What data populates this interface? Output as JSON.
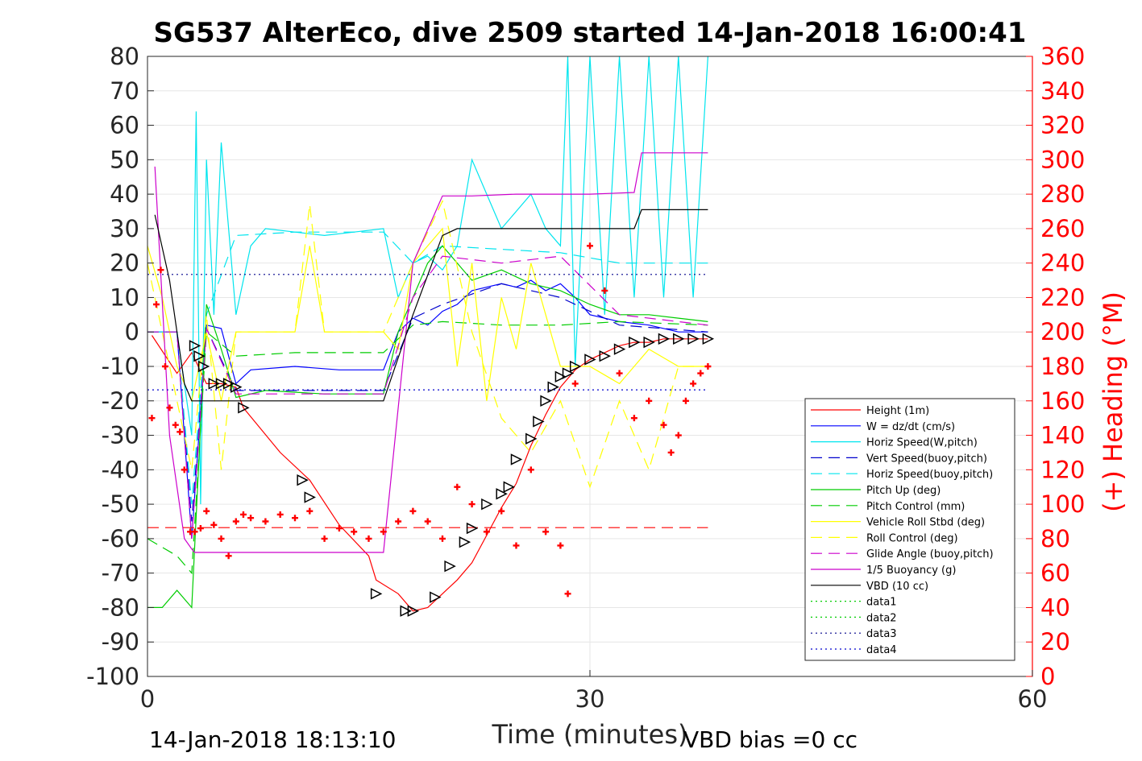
{
  "chart_data": {
    "type": "line",
    "title": "SG537 AlterEco, dive 2509 started 14-Jan-2018 16:00:41",
    "xlabel": "Time (minutes)",
    "ylabel_right": "(+) Heading (°M)",
    "xlim": [
      0,
      60
    ],
    "ylim_left": [
      -100,
      80
    ],
    "ylim_right": [
      0,
      360
    ],
    "xticks": [
      "0",
      "30",
      "60"
    ],
    "yticks_left": [
      "80",
      "70",
      "60",
      "50",
      "40",
      "30",
      "20",
      "10",
      "0",
      "-10",
      "-20",
      "-30",
      "-40",
      "-50",
      "-60",
      "-70",
      "-80",
      "-90",
      "-100"
    ],
    "yticks_right": [
      "360",
      "340",
      "320",
      "300",
      "280",
      "260",
      "240",
      "220",
      "200",
      "180",
      "160",
      "140",
      "120",
      "100",
      "80",
      "60",
      "40",
      "20",
      "0"
    ],
    "grid": true,
    "legend_position": "lower-right",
    "footer_left": "14-Jan-2018 18:13:10",
    "footer_right": "VBD bias =0 cc",
    "colors": {
      "axis": "#262626",
      "heading": "#ff0000",
      "grid": "#e6e6e6"
    },
    "series": [
      {
        "name": "Height (1m)",
        "color": "#ff0000",
        "style": "solid",
        "x": [
          0.3,
          2,
          3,
          4,
          5,
          6,
          6.5,
          9,
          11,
          13,
          15,
          15.5,
          17,
          18,
          19,
          20,
          21,
          22,
          23,
          24,
          25,
          26,
          27,
          28,
          29,
          30,
          31,
          32,
          33,
          34,
          35,
          36,
          37,
          38
        ],
        "y": [
          -1,
          -12,
          -6,
          -15,
          -15,
          -16,
          -22,
          -35,
          -43,
          -56,
          -65,
          -72,
          -76,
          -81,
          -80,
          -76,
          -72,
          -67,
          -59,
          -51,
          -44,
          -33,
          -24,
          -16,
          -11,
          -8,
          -6,
          -4,
          -3,
          -3,
          -2,
          -2,
          -2,
          -2
        ]
      },
      {
        "name": "W = dz/dt (cm/s)",
        "color": "#0000ff",
        "style": "solid",
        "x": [
          0,
          2,
          3,
          4,
          5,
          6,
          7,
          10,
          13,
          16,
          17,
          18,
          19,
          20,
          21,
          22,
          23,
          24,
          25,
          26,
          27,
          28,
          29,
          30,
          32,
          34,
          36,
          38
        ],
        "y": [
          0,
          0,
          -60,
          2,
          1,
          -15,
          -11,
          -10,
          -11,
          -11,
          0,
          4,
          2,
          6,
          8,
          12,
          13,
          14,
          13,
          15,
          12,
          14,
          10,
          5,
          3,
          2,
          0,
          0
        ]
      },
      {
        "name": "Horiz Speed(W,pitch)",
        "color": "#00e5ee",
        "style": "solid",
        "x": [
          0,
          1,
          2,
          3,
          3.3,
          3.6,
          4,
          4.5,
          5,
          6,
          7,
          8,
          10,
          12,
          14,
          16,
          17,
          18,
          19,
          20,
          21,
          22,
          23,
          24,
          25,
          26,
          27,
          28,
          28.5,
          29,
          30,
          31,
          32,
          33,
          34,
          35,
          36,
          37,
          38
        ],
        "y": [
          0,
          0,
          0,
          -30,
          64,
          -50,
          50,
          5,
          55,
          5,
          25,
          30,
          29,
          28,
          29,
          30,
          10,
          20,
          22,
          18,
          25,
          50,
          40,
          30,
          35,
          40,
          30,
          25,
          80,
          -10,
          80,
          5,
          80,
          10,
          80,
          10,
          80,
          10,
          80
        ]
      },
      {
        "name": "Vert Speed(buoy,pitch)",
        "color": "#0000cd",
        "style": "dashed",
        "x": [
          0,
          2,
          3,
          4,
          6,
          10,
          16,
          18,
          20,
          24,
          28,
          32,
          38
        ],
        "y": [
          0,
          0,
          -55,
          1,
          -17,
          -17,
          -17,
          4,
          8,
          14,
          10,
          2,
          0
        ]
      },
      {
        "name": "Horiz Speed(buoy,pitch)",
        "color": "#00e5ee",
        "style": "dashed",
        "x": [
          0,
          2,
          3,
          4,
          6,
          10,
          16,
          18,
          20,
          24,
          28,
          32,
          38
        ],
        "y": [
          0,
          0,
          -50,
          5,
          28,
          29,
          29,
          20,
          25,
          24,
          23,
          20,
          20
        ]
      },
      {
        "name": "Pitch Up (deg)",
        "color": "#00cc00",
        "style": "solid",
        "x": [
          0,
          1,
          2,
          3,
          4,
          5,
          6,
          8,
          12,
          16,
          17,
          18,
          19,
          20,
          22,
          24,
          26,
          28,
          30,
          32,
          34,
          36,
          38
        ],
        "y": [
          -80,
          -80,
          -75,
          -80,
          8,
          -5,
          -19,
          -17,
          -18,
          -18,
          0,
          10,
          20,
          25,
          15,
          18,
          14,
          12,
          8,
          5,
          5,
          4,
          3
        ]
      },
      {
        "name": "Pitch Control (mm)",
        "color": "#00cc00",
        "style": "dashed",
        "x": [
          0,
          2,
          3,
          4,
          6,
          10,
          16,
          18,
          20,
          24,
          28,
          32,
          38
        ],
        "y": [
          -60,
          -65,
          -70,
          0,
          -7,
          -6,
          -6,
          2,
          3,
          2,
          2,
          3,
          2
        ]
      },
      {
        "name": "Vehicle Roll Stbd (deg)",
        "color": "#ffff00",
        "style": "solid",
        "x": [
          0,
          1,
          2,
          3,
          4,
          5,
          6,
          8,
          10,
          11,
          12,
          14,
          16,
          17,
          18,
          20,
          21,
          22,
          23,
          24,
          25,
          26,
          27,
          28,
          30,
          32,
          34,
          36,
          38
        ],
        "y": [
          25,
          10,
          -10,
          -20,
          0,
          -20,
          0,
          0,
          0,
          25,
          0,
          0,
          0,
          -5,
          20,
          30,
          -10,
          20,
          -20,
          10,
          -5,
          20,
          5,
          -10,
          -10,
          -15,
          -5,
          -10,
          -10
        ]
      },
      {
        "name": "Roll Control (deg)",
        "color": "#ffff00",
        "style": "dashed",
        "x": [
          0,
          2,
          3,
          4,
          5,
          6,
          8,
          10,
          11,
          12,
          14,
          16,
          18,
          20,
          22,
          24,
          26,
          28,
          30,
          32,
          34,
          36,
          38
        ],
        "y": [
          20,
          -20,
          -40,
          5,
          -40,
          0,
          0,
          0,
          37,
          0,
          0,
          0,
          20,
          38,
          0,
          -25,
          -35,
          -20,
          -45,
          -20,
          -40,
          -10,
          -10
        ]
      },
      {
        "name": "Glide Angle (buoy,pitch)",
        "color": "#cc00cc",
        "style": "dashed",
        "x": [
          0,
          2,
          3,
          4,
          6,
          10,
          16,
          18,
          20,
          24,
          28,
          32,
          38
        ],
        "y": [
          0,
          0,
          -60,
          1,
          -18,
          -18,
          -18,
          10,
          22,
          20,
          22,
          5,
          2
        ]
      },
      {
        "name": "1/5 Buoyancy (g)",
        "color": "#cc00cc",
        "style": "solid",
        "x": [
          0.5,
          1.5,
          2.5,
          3,
          3.2,
          5,
          10,
          15,
          16,
          18,
          20,
          22,
          25,
          30,
          33,
          33.5,
          38
        ],
        "y": [
          48,
          -30,
          -60,
          -63,
          -64,
          -64,
          -64,
          -64,
          -64,
          20,
          39.5,
          39.5,
          40,
          40,
          40.5,
          52,
          52
        ]
      },
      {
        "name": "VBD (10 cc)",
        "color": "#000000",
        "style": "solid",
        "x": [
          0.5,
          1.5,
          2.5,
          3,
          5,
          10,
          15,
          16,
          18,
          20,
          21,
          25,
          30,
          33,
          33.5,
          38
        ],
        "y": [
          34,
          15,
          -15,
          -20,
          -20,
          -20,
          -20,
          -20,
          5,
          28,
          30,
          30,
          30,
          30,
          35.5,
          35.5
        ]
      },
      {
        "name": "data1",
        "color": "#00cc00",
        "style": "dotted",
        "x": [],
        "y": []
      },
      {
        "name": "data2",
        "color": "#00cc00",
        "style": "dotted",
        "x": [],
        "y": []
      },
      {
        "name": "data3",
        "color": "#00008b",
        "style": "dotted",
        "x": [
          0,
          38
        ],
        "y": [
          16.7,
          16.7
        ]
      },
      {
        "name": "data4",
        "color": "#0000cd",
        "style": "dotted",
        "x": [
          0,
          38
        ],
        "y": [
          -16.8,
          -16.8
        ]
      }
    ],
    "heading_ref": {
      "color": "#ff0000",
      "style": "dashed",
      "x": [
        0,
        38
      ],
      "y": [
        -56.8,
        -56.8
      ]
    },
    "heading_points": {
      "color": "#ff0000",
      "x": [
        0.3,
        0.6,
        0.9,
        1.2,
        1.5,
        1.9,
        2.2,
        2.5,
        2.9,
        3.2,
        3.6,
        4,
        4.5,
        5,
        5.5,
        6,
        6.5,
        7,
        8,
        9,
        10,
        11,
        12,
        13,
        14,
        15,
        16,
        17,
        18,
        19,
        20,
        21,
        22,
        23,
        24,
        25,
        26,
        27,
        28,
        28.5,
        29,
        30,
        31,
        32,
        33,
        34,
        35,
        35.5,
        36,
        36.5,
        37,
        37.5,
        38
      ],
      "y": [
        -25,
        8,
        18,
        -10,
        -22,
        -27,
        -29,
        -40,
        -58,
        -58,
        -57,
        -52,
        -56,
        -60,
        -65,
        -55,
        -53,
        -54,
        -55,
        -53,
        -54,
        -52,
        -60,
        -57,
        -58,
        -60,
        -58,
        -55,
        -52,
        -55,
        -60,
        -45,
        -50,
        -58,
        -52,
        -62,
        -40,
        -58,
        -62,
        -76,
        -15,
        25,
        12,
        -12,
        -25,
        -20,
        -27,
        -35,
        -30,
        -20,
        -15,
        -12,
        -10
      ]
    },
    "glider_markers": {
      "color": "#000000",
      "x": [
        3.2,
        3.5,
        3.8,
        4.5,
        5,
        5.5,
        6,
        6.5,
        10.5,
        11,
        15.5,
        17.5,
        18,
        19.5,
        20.5,
        21.5,
        22,
        23,
        24,
        24.5,
        25,
        26,
        26.5,
        27,
        27.5,
        28,
        28.5,
        29,
        30,
        31,
        32,
        33,
        34,
        35,
        36,
        37,
        38
      ],
      "y": [
        -4,
        -7,
        -10,
        -15,
        -15,
        -15,
        -16,
        -22,
        -43,
        -48,
        -76,
        -81,
        -81,
        -77,
        -68,
        -61,
        -57,
        -50,
        -47,
        -45,
        -37,
        -31,
        -26,
        -20,
        -16,
        -13,
        -12,
        -10,
        -8,
        -7,
        -5,
        -3,
        -3,
        -2,
        -2,
        -2,
        -2
      ]
    }
  }
}
